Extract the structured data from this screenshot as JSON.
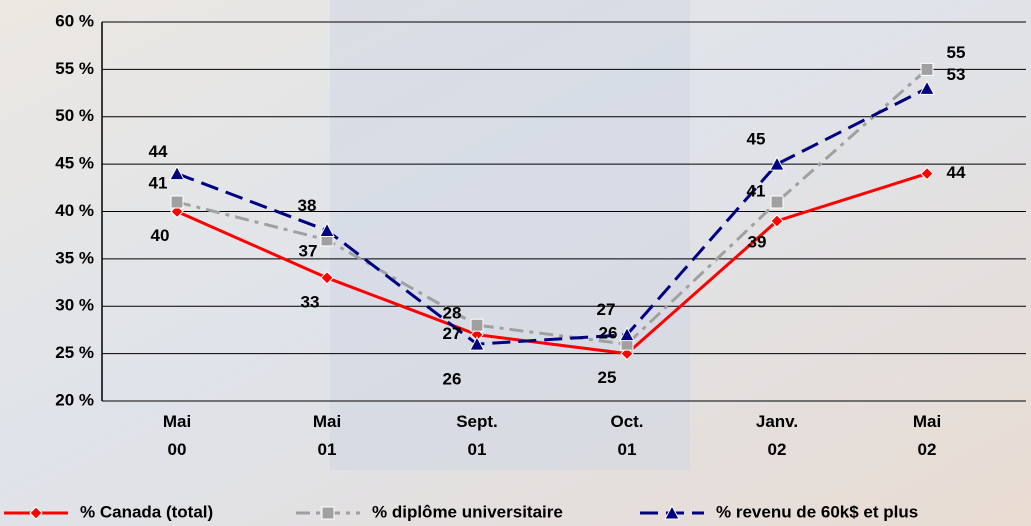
{
  "chart_data": {
    "type": "line",
    "categories": [
      "Mai 00",
      "Mai 01",
      "Sept. 01",
      "Oct. 01",
      "Janv. 02",
      "Mai 02"
    ],
    "series": [
      {
        "name": "% Canada (total)",
        "color": "#ff0000",
        "values": [
          40,
          33,
          27,
          25,
          39,
          44
        ]
      },
      {
        "name": "% diplôme universitaire",
        "color": "#a0a0a0",
        "values": [
          41,
          37,
          28,
          26,
          41,
          55
        ]
      },
      {
        "name": "% revenu de 60k$ et plus",
        "color": "#000080",
        "values": [
          44,
          38,
          26,
          27,
          45,
          53
        ]
      }
    ],
    "ylim": [
      20,
      60
    ],
    "yticks": [
      {
        "value": 20,
        "label": "20 %"
      },
      {
        "value": 25,
        "label": "25 %"
      },
      {
        "value": 30,
        "label": "30 %"
      },
      {
        "value": 35,
        "label": "35 %"
      },
      {
        "value": 40,
        "label": "40 %"
      },
      {
        "value": 45,
        "label": "45 %"
      },
      {
        "value": 50,
        "label": "50 %"
      },
      {
        "value": 55,
        "label": "55 %"
      },
      {
        "value": 60,
        "label": "60 %"
      }
    ],
    "grid": true,
    "legend": "bottom"
  }
}
